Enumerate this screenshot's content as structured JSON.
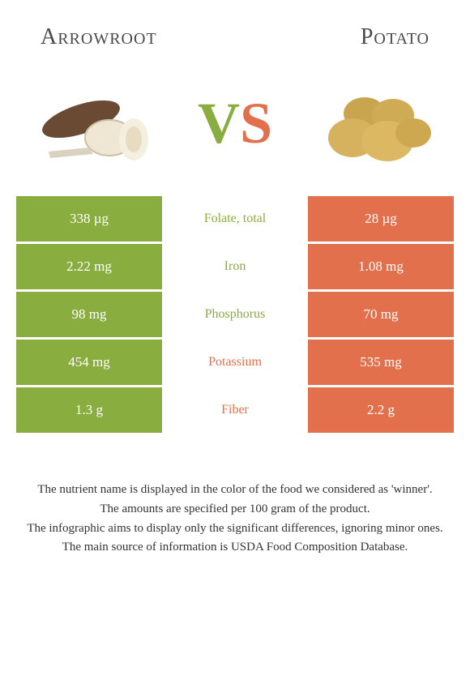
{
  "colors": {
    "left": "#8aad3f",
    "right": "#e2704c",
    "row_gap": "#ffffff",
    "text_mid": "#6b6b6b"
  },
  "food_left": {
    "name": "Arrowroot"
  },
  "food_right": {
    "name": "Potato"
  },
  "vs": {
    "v": "V",
    "s": "S"
  },
  "rows": [
    {
      "left": "338 µg",
      "label": "Folate, total",
      "right": "28 µg",
      "winner": "left"
    },
    {
      "left": "2.22 mg",
      "label": "Iron",
      "right": "1.08 mg",
      "winner": "left"
    },
    {
      "left": "98 mg",
      "label": "Phosphorus",
      "right": "70 mg",
      "winner": "left"
    },
    {
      "left": "454 mg",
      "label": "Potassium",
      "right": "535 mg",
      "winner": "right"
    },
    {
      "left": "1.3 g",
      "label": "Fiber",
      "right": "2.2 g",
      "winner": "right"
    }
  ],
  "footnotes": [
    "The nutrient name is displayed in the color of the food we considered as 'winner'.",
    "The amounts are specified per 100 gram of the product.",
    "The infographic aims to display only the significant differences, ignoring minor ones.",
    "The main source of information is USDA Food Composition Database."
  ]
}
